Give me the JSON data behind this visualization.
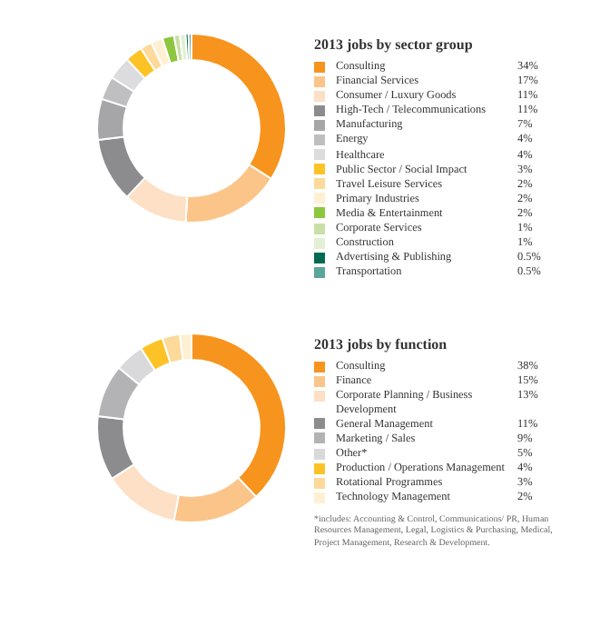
{
  "chart_data": [
    {
      "type": "donut",
      "title": "2013 jobs by sector group",
      "legend": "right",
      "categories": [
        "Consulting",
        "Financial Services",
        "Consumer / Luxury Goods",
        "High-Tech / Telecommunications",
        "Manufacturing",
        "Energy",
        "Healthcare",
        "Public Sector / Social Impact",
        "Travel Leisure Services",
        "Primary Industries",
        "Media & Entertainment",
        "Corporate Services",
        "Construction",
        "Advertising & Publishing",
        "Transportation"
      ],
      "values": [
        34,
        17,
        11,
        11,
        7,
        4,
        4,
        3,
        2,
        2,
        2,
        1,
        1,
        0.5,
        0.5
      ],
      "value_labels": [
        "34%",
        "17%",
        "11%",
        "11%",
        "7%",
        "4%",
        "4%",
        "3%",
        "2%",
        "2%",
        "2%",
        "1%",
        "1%",
        "0.5%",
        "0.5%"
      ],
      "colors": [
        "#f7941d",
        "#fbc58a",
        "#fde0c5",
        "#8c8c8f",
        "#a6a6a8",
        "#bfbfc1",
        "#dcdcde",
        "#fdc326",
        "#fdd99a",
        "#fef0d2",
        "#8dc63f",
        "#c8e0a6",
        "#e3f0d3",
        "#006b4f",
        "#5ba69a"
      ]
    },
    {
      "type": "donut",
      "title": "2013 jobs by function",
      "legend": "right",
      "categories": [
        "Consulting",
        "Finance",
        "Corporate Planning / Business Development",
        "General Management",
        "Marketing / Sales",
        "Other*",
        "Production / Operations Management",
        "Rotational Programmes",
        "Technology Management"
      ],
      "values": [
        38,
        15,
        13,
        11,
        9,
        5,
        4,
        3,
        2
      ],
      "value_labels": [
        "38%",
        "15%",
        "13%",
        "11%",
        "9%",
        "5%",
        "4%",
        "3%",
        "2%"
      ],
      "colors": [
        "#f7941d",
        "#fbc58a",
        "#fde0c5",
        "#8c8c8f",
        "#b3b3b5",
        "#d9d9db",
        "#fdc326",
        "#fdd99a",
        "#fef0d2"
      ],
      "annotations": [
        "*includes: Accounting & Control, Communications/ PR, Human Resources Management, Legal, Logistics & Purchasing, Medical, Project Management, Research & Development."
      ]
    }
  ]
}
